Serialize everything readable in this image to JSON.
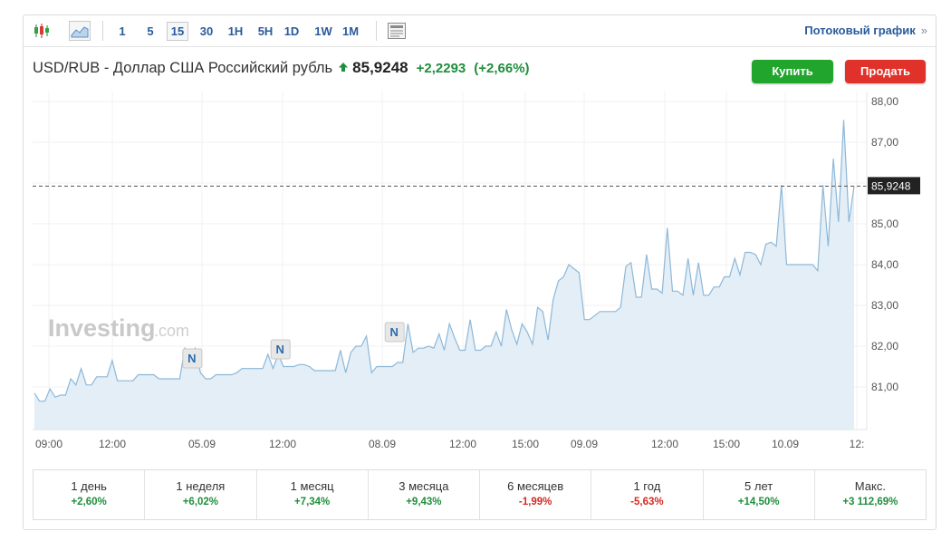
{
  "toolbar": {
    "icons": [
      "candlestick-icon",
      "area-chart-icon",
      "news-icon"
    ],
    "timeframes": [
      "1",
      "5",
      "15",
      "30",
      "1H",
      "5H",
      "1D",
      "1W",
      "1M"
    ],
    "active_timeframe": "15",
    "stream_link": "Потоковый график",
    "stream_arrow": "»"
  },
  "header": {
    "pair": "USD/RUB - Доллар США Российский рубль",
    "price": "85,9248",
    "change": "+2,2293",
    "change_pct": "(+2,66%)",
    "buy_label": "Купить",
    "sell_label": "Продать"
  },
  "colors": {
    "positive": "#1f8e3d",
    "negative": "#d42a22",
    "buy": "#21a52d",
    "sell": "#e0312a",
    "line": "#8db8d8",
    "area": "#e3eef7",
    "link": "#2a5b9c"
  },
  "watermark": {
    "main": "Investing",
    "suffix": ".com"
  },
  "chart_data": {
    "type": "area",
    "ylim": [
      80.0,
      88.3
    ],
    "y_ticks": [
      "88,00",
      "87,00",
      "86,00",
      "85,00",
      "84,00",
      "83,00",
      "82,00",
      "81,00"
    ],
    "x_ticks": [
      "09:00",
      "12:00",
      "05.09",
      "12:00",
      "08.09",
      "12:00",
      "15:00",
      "09.09",
      "12:00",
      "15:00",
      "10.09",
      "12:"
    ],
    "last_value": 85.9248,
    "last_value_label": "85,9248",
    "news_marker_label": "N",
    "news_markers": 3,
    "values": [
      80.85,
      80.65,
      80.65,
      80.95,
      80.75,
      80.8,
      80.8,
      81.2,
      81.05,
      81.45,
      81.05,
      81.05,
      81.25,
      81.25,
      81.25,
      81.65,
      81.15,
      81.15,
      81.15,
      81.15,
      81.3,
      81.3,
      81.3,
      81.3,
      81.2,
      81.2,
      81.2,
      81.2,
      81.2,
      81.95,
      81.75,
      81.95,
      81.35,
      81.2,
      81.2,
      81.3,
      81.3,
      81.3,
      81.3,
      81.35,
      81.45,
      81.45,
      81.45,
      81.45,
      81.45,
      81.8,
      81.45,
      81.8,
      81.5,
      81.5,
      81.5,
      81.55,
      81.55,
      81.5,
      81.4,
      81.4,
      81.4,
      81.4,
      81.4,
      81.9,
      81.35,
      81.85,
      82.0,
      82.0,
      82.25,
      81.35,
      81.5,
      81.5,
      81.5,
      81.5,
      81.6,
      81.6,
      82.55,
      81.85,
      81.95,
      81.95,
      82.0,
      81.95,
      82.3,
      81.9,
      82.55,
      82.2,
      81.9,
      81.9,
      82.65,
      81.9,
      81.9,
      82.0,
      82.0,
      82.35,
      82.0,
      82.9,
      82.4,
      82.05,
      82.55,
      82.35,
      82.05,
      82.95,
      82.85,
      82.15,
      83.15,
      83.6,
      83.7,
      84.0,
      83.9,
      83.8,
      82.65,
      82.65,
      82.75,
      82.85,
      82.85,
      82.85,
      82.85,
      82.95,
      83.95,
      84.05,
      83.2,
      83.2,
      84.25,
      83.4,
      83.4,
      83.3,
      84.9,
      83.35,
      83.35,
      83.25,
      84.15,
      83.25,
      84.05,
      83.25,
      83.25,
      83.45,
      83.45,
      83.7,
      83.7,
      84.15,
      83.75,
      84.3,
      84.3,
      84.25,
      84.0,
      84.5,
      84.55,
      84.45,
      85.95,
      84.0,
      84.0,
      84.0,
      84.0,
      84.0,
      84.0,
      83.85,
      85.95,
      84.45,
      86.6,
      85.05,
      87.55,
      85.05,
      85.92
    ]
  },
  "performance": [
    {
      "label": "1 день",
      "value": "+2,60%",
      "sign": "pos"
    },
    {
      "label": "1 неделя",
      "value": "+6,02%",
      "sign": "pos"
    },
    {
      "label": "1 месяц",
      "value": "+7,34%",
      "sign": "pos"
    },
    {
      "label": "3 месяца",
      "value": "+9,43%",
      "sign": "pos"
    },
    {
      "label": "6 месяцев",
      "value": "-1,99%",
      "sign": "neg"
    },
    {
      "label": "1 год",
      "value": "-5,63%",
      "sign": "neg"
    },
    {
      "label": "5 лет",
      "value": "+14,50%",
      "sign": "pos"
    },
    {
      "label": "Макс.",
      "value": "+3 112,69%",
      "sign": "pos"
    }
  ]
}
